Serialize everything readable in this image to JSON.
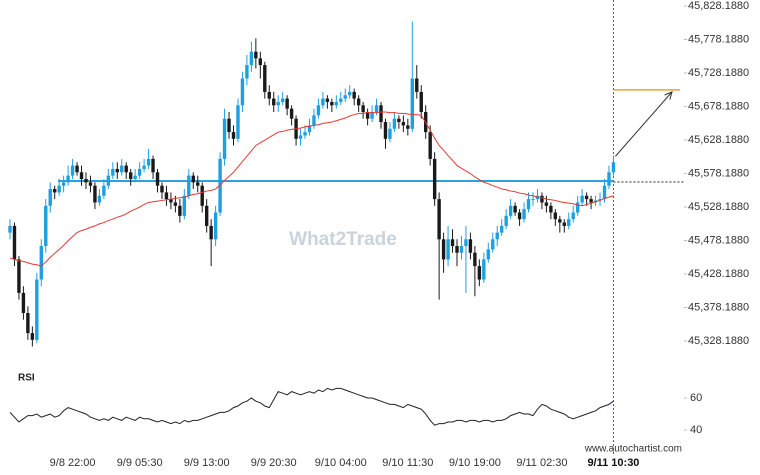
{
  "chart_data": {
    "type": "candlestick",
    "categories": [
      null,
      null,
      null,
      null,
      null,
      null,
      null,
      null,
      null,
      null,
      null,
      null,
      null,
      null,
      "9/8 22:00",
      null,
      null,
      null,
      null,
      null,
      null,
      null,
      null,
      null,
      null,
      null,
      null,
      null,
      null,
      "9/9 05:30",
      null,
      null,
      null,
      null,
      null,
      null,
      null,
      null,
      null,
      null,
      null,
      null,
      null,
      null,
      "9/9 13:00",
      null,
      null,
      null,
      null,
      null,
      null,
      null,
      null,
      null,
      null,
      null,
      null,
      null,
      null,
      "9/9 20:30",
      null,
      null,
      null,
      null,
      null,
      null,
      null,
      null,
      null,
      null,
      null,
      null,
      null,
      null,
      "9/10 04:00",
      null,
      null,
      null,
      null,
      null,
      null,
      null,
      null,
      null,
      null,
      null,
      null,
      null,
      null,
      "9/10 11:30",
      null,
      null,
      null,
      null,
      null,
      null,
      null,
      null,
      null,
      null,
      null,
      null,
      null,
      null,
      "9/10 19:00",
      null,
      null,
      null,
      null,
      null,
      null,
      null,
      null,
      null,
      null,
      null,
      null,
      null,
      null,
      "9/11 02:30",
      null,
      null,
      null,
      null,
      null,
      null,
      null,
      null,
      null,
      null,
      null,
      null,
      null,
      null,
      null,
      "9/11 10:30"
    ],
    "ohlc": [
      [
        45490,
        45510,
        45480,
        45500
      ],
      [
        45500,
        45505,
        45440,
        45450
      ],
      [
        45450,
        45455,
        45390,
        45400
      ],
      [
        45400,
        45410,
        45360,
        45370
      ],
      [
        45370,
        45380,
        45330,
        45340
      ],
      [
        45340,
        45350,
        45320,
        45330
      ],
      [
        45330,
        45430,
        45325,
        45420
      ],
      [
        45420,
        45480,
        45410,
        45470
      ],
      [
        45470,
        45540,
        45460,
        45530
      ],
      [
        45530,
        45565,
        45520,
        45555
      ],
      [
        45555,
        45560,
        45540,
        45550
      ],
      [
        45550,
        45570,
        45545,
        45560
      ],
      [
        45560,
        45575,
        45550,
        45565
      ],
      [
        45565,
        45590,
        45560,
        45575
      ],
      [
        45575,
        45600,
        45570,
        45590
      ],
      [
        45590,
        45595,
        45575,
        45580
      ],
      [
        45580,
        45590,
        45560,
        45570
      ],
      [
        45570,
        45580,
        45555,
        45565
      ],
      [
        45565,
        45575,
        45550,
        45560
      ],
      [
        45560,
        45565,
        45525,
        45535
      ],
      [
        45535,
        45555,
        45530,
        45545
      ],
      [
        45545,
        45570,
        45540,
        45560
      ],
      [
        45560,
        45585,
        45555,
        45575
      ],
      [
        45575,
        45595,
        45570,
        45585
      ],
      [
        45585,
        45595,
        45570,
        45580
      ],
      [
        45580,
        45600,
        45575,
        45590
      ],
      [
        45590,
        45595,
        45570,
        45580
      ],
      [
        45580,
        45585,
        45560,
        45570
      ],
      [
        45570,
        45585,
        45565,
        45575
      ],
      [
        45575,
        45595,
        45570,
        45585
      ],
      [
        45585,
        45600,
        45580,
        45590
      ],
      [
        45590,
        45615,
        45585,
        45600
      ],
      [
        45600,
        45605,
        45570,
        45580
      ],
      [
        45580,
        45585,
        45550,
        45560
      ],
      [
        45560,
        45565,
        45540,
        45550
      ],
      [
        45550,
        45560,
        45530,
        45540
      ],
      [
        45540,
        45550,
        45525,
        45535
      ],
      [
        45535,
        45545,
        45520,
        45530
      ],
      [
        45530,
        45540,
        45505,
        45515
      ],
      [
        45515,
        45555,
        45510,
        45545
      ],
      [
        45545,
        45585,
        45540,
        45575
      ],
      [
        45575,
        45580,
        45555,
        45565
      ],
      [
        45565,
        45575,
        45550,
        45560
      ],
      [
        45560,
        45565,
        45520,
        45530
      ],
      [
        45530,
        45540,
        45490,
        45500
      ],
      [
        45500,
        45510,
        45440,
        45480
      ],
      [
        45480,
        45530,
        45470,
        45520
      ],
      [
        45520,
        45610,
        45515,
        45600
      ],
      [
        45600,
        45675,
        45590,
        45660
      ],
      [
        45660,
        45670,
        45630,
        45640
      ],
      [
        45640,
        45650,
        45620,
        45630
      ],
      [
        45630,
        45690,
        45625,
        45680
      ],
      [
        45680,
        45730,
        45670,
        45720
      ],
      [
        45720,
        45755,
        45710,
        45740
      ],
      [
        45740,
        45775,
        45730,
        45760
      ],
      [
        45760,
        45780,
        45735,
        45750
      ],
      [
        45750,
        45760,
        45720,
        45740
      ],
      [
        45740,
        45745,
        45690,
        45700
      ],
      [
        45700,
        45710,
        45680,
        45690
      ],
      [
        45690,
        45700,
        45670,
        45680
      ],
      [
        45680,
        45695,
        45670,
        45685
      ],
      [
        45685,
        45700,
        45680,
        45690
      ],
      [
        45690,
        45695,
        45665,
        45675
      ],
      [
        45675,
        45680,
        45650,
        45660
      ],
      [
        45660,
        45665,
        45620,
        45630
      ],
      [
        45630,
        45645,
        45620,
        45635
      ],
      [
        45635,
        45650,
        45630,
        45640
      ],
      [
        45640,
        45660,
        45635,
        45650
      ],
      [
        45650,
        45675,
        45645,
        45665
      ],
      [
        45665,
        45690,
        45660,
        45680
      ],
      [
        45680,
        45700,
        45675,
        45690
      ],
      [
        45690,
        45695,
        45675,
        45685
      ],
      [
        45685,
        45690,
        45670,
        45680
      ],
      [
        45680,
        45695,
        45675,
        45685
      ],
      [
        45685,
        45700,
        45680,
        45690
      ],
      [
        45690,
        45705,
        45685,
        45695
      ],
      [
        45695,
        45710,
        45690,
        45700
      ],
      [
        45700,
        45705,
        45680,
        45690
      ],
      [
        45690,
        45695,
        45670,
        45680
      ],
      [
        45680,
        45685,
        45660,
        45670
      ],
      [
        45670,
        45675,
        45650,
        45660
      ],
      [
        45660,
        45680,
        45655,
        45670
      ],
      [
        45670,
        45690,
        45665,
        45680
      ],
      [
        45680,
        45685,
        45645,
        45655
      ],
      [
        45655,
        45660,
        45615,
        45630
      ],
      [
        45630,
        45655,
        45625,
        45645
      ],
      [
        45645,
        45670,
        45640,
        45660
      ],
      [
        45660,
        45665,
        45645,
        45655
      ],
      [
        45655,
        45665,
        45640,
        45650
      ],
      [
        45650,
        45660,
        45635,
        45645
      ],
      [
        45645,
        45805,
        45640,
        45720
      ],
      [
        45720,
        45740,
        45690,
        45700
      ],
      [
        45700,
        45710,
        45660,
        45670
      ],
      [
        45670,
        45680,
        45630,
        45640
      ],
      [
        45640,
        45650,
        45590,
        45600
      ],
      [
        45600,
        45610,
        45530,
        45540
      ],
      [
        45540,
        45550,
        45390,
        45480
      ],
      [
        45480,
        45490,
        45430,
        45450
      ],
      [
        45450,
        45500,
        45440,
        45480
      ],
      [
        45480,
        45495,
        45460,
        45470
      ],
      [
        45470,
        45480,
        45440,
        45460
      ],
      [
        45460,
        45485,
        45450,
        45470
      ],
      [
        45470,
        45500,
        45400,
        45480
      ],
      [
        45480,
        45490,
        45450,
        45460
      ],
      [
        45460,
        45470,
        45395,
        45440
      ],
      [
        45440,
        45450,
        45410,
        45420
      ],
      [
        45420,
        45460,
        45415,
        45450
      ],
      [
        45450,
        45475,
        45445,
        45465
      ],
      [
        45465,
        45490,
        45460,
        45480
      ],
      [
        45480,
        45500,
        45470,
        45490
      ],
      [
        45490,
        45510,
        45485,
        45500
      ],
      [
        45500,
        45525,
        45495,
        45515
      ],
      [
        45515,
        45540,
        45510,
        45530
      ],
      [
        45530,
        45535,
        45515,
        45520
      ],
      [
        45520,
        45525,
        45500,
        45510
      ],
      [
        45510,
        45535,
        45505,
        45525
      ],
      [
        45525,
        45550,
        45520,
        45540
      ],
      [
        45540,
        45550,
        45530,
        45540
      ],
      [
        45540,
        45555,
        45535,
        45545
      ],
      [
        45545,
        45550,
        45525,
        45535
      ],
      [
        45535,
        45545,
        45520,
        45530
      ],
      [
        45530,
        45535,
        45510,
        45520
      ],
      [
        45520,
        45525,
        45500,
        45510
      ],
      [
        45510,
        45515,
        45490,
        45505
      ],
      [
        45505,
        45510,
        45490,
        45500
      ],
      [
        45500,
        45520,
        45495,
        45510
      ],
      [
        45510,
        45530,
        45505,
        45520
      ],
      [
        45520,
        45545,
        45515,
        45535
      ],
      [
        45535,
        45555,
        45530,
        45545
      ],
      [
        45545,
        45550,
        45530,
        45540
      ],
      [
        45540,
        45545,
        45525,
        45535
      ],
      [
        45535,
        45545,
        45530,
        45538
      ],
      [
        45538,
        45550,
        45530,
        45540
      ],
      [
        45540,
        45570,
        45535,
        45560
      ],
      [
        45560,
        45590,
        45555,
        45580
      ],
      [
        45580,
        45605,
        45575,
        45595
      ]
    ],
    "up_color": "#1e9fe0",
    "down_color": "#1a1a1a",
    "ma": {
      "color": "#e53935",
      "values": [
        45452,
        45450,
        45448,
        45447,
        45445,
        45443,
        45442,
        45440,
        45446,
        45453,
        45459,
        45465,
        45471,
        45478,
        45484,
        45490,
        45493,
        45495,
        45498,
        45500,
        45503,
        45505,
        45508,
        45510,
        45513,
        45515,
        45518,
        45522,
        45525,
        45528,
        45532,
        45535,
        45536,
        45537,
        45538,
        45539,
        45540,
        45541,
        45542,
        45543,
        45545,
        45547,
        45548,
        45550,
        45552,
        45553,
        45555,
        45561,
        45568,
        45574,
        45580,
        45588,
        45596,
        45604,
        45612,
        45620,
        45624,
        45628,
        45632,
        45636,
        45640,
        45641,
        45643,
        45644,
        45645,
        45646,
        45648,
        45649,
        45650,
        45651,
        45653,
        45654,
        45655,
        45657,
        45659,
        45661,
        45664,
        45666,
        45668,
        45668,
        45669,
        45669,
        45669,
        45670,
        45670,
        45669,
        45669,
        45668,
        45668,
        45667,
        45666,
        45666,
        45665,
        45654,
        45643,
        45631,
        45620,
        45613,
        45605,
        45598,
        45590,
        45586,
        45582,
        45578,
        45573,
        45569,
        45565,
        45563,
        45560,
        45558,
        45555,
        45554,
        45552,
        45551,
        45549,
        45548,
        45546,
        45545,
        45543,
        45542,
        45540,
        45539,
        45538,
        45536,
        45535,
        45534,
        45533,
        45531,
        45530,
        45532,
        45534,
        45536,
        45538,
        45541,
        45543,
        45545
      ]
    },
    "ylim": [
      45290,
      45840
    ],
    "yticks": [
      {
        "value": 45828.188,
        "label": "45,828.1880"
      },
      {
        "value": 45778.188,
        "label": "45,778.1880"
      },
      {
        "value": 45728.188,
        "label": "45,728.1880"
      },
      {
        "value": 45678.188,
        "label": "45,678.1880"
      },
      {
        "value": 45628.188,
        "label": "45,628.1880"
      },
      {
        "value": 45578.188,
        "label": "45,578.1880"
      },
      {
        "value": 45528.188,
        "label": "45,528.1880"
      },
      {
        "value": 45478.188,
        "label": "45,478.1880"
      },
      {
        "value": 45428.188,
        "label": "45,428.1880"
      },
      {
        "value": 45378.188,
        "label": "45,378.1880"
      },
      {
        "value": 45328.188,
        "label": "45,328.1880"
      }
    ],
    "level": {
      "value": 45567,
      "color": "#29a3e0"
    },
    "target": {
      "value": 45703,
      "color": "#f0a030"
    },
    "rsi": {
      "title": "RSI",
      "color": "#222222",
      "ylim": [
        30,
        68
      ],
      "yticks": [
        60,
        40
      ],
      "values": [
        51,
        48,
        45,
        47,
        49,
        49,
        50,
        48,
        49,
        50,
        48,
        49,
        52,
        54,
        53,
        52,
        51,
        50,
        48,
        47,
        46,
        47,
        46,
        48,
        47,
        46,
        48,
        47,
        46,
        48,
        47,
        47,
        46,
        45,
        46,
        45,
        44,
        45,
        44,
        46,
        45,
        46,
        46,
        47,
        48,
        49,
        50,
        51,
        51,
        52,
        54,
        55,
        57,
        58,
        60,
        58,
        57,
        55,
        54,
        59,
        64,
        63,
        62,
        64,
        63,
        62,
        63,
        64,
        63,
        65,
        64,
        66,
        65,
        66,
        66,
        65,
        64,
        63,
        62,
        61,
        60,
        60,
        59,
        58,
        57,
        56,
        56,
        55,
        54,
        56,
        55,
        54,
        53,
        50,
        46,
        43,
        44,
        44,
        45,
        45,
        46,
        46,
        45,
        46,
        46,
        45,
        46,
        46,
        45,
        46,
        46,
        47,
        49,
        50,
        51,
        50,
        50,
        49,
        53,
        56,
        55,
        53,
        52,
        51,
        50,
        48,
        47,
        48,
        49,
        50,
        51,
        52,
        54,
        55,
        56,
        58
      ]
    },
    "watermark": "What2Trade",
    "source": "www.autochartist.com"
  }
}
